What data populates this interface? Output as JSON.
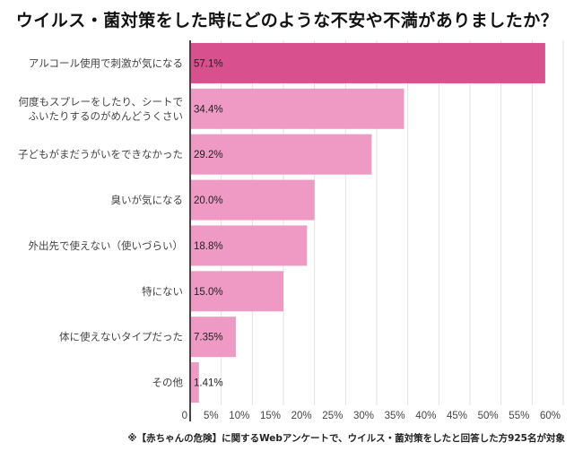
{
  "chart_data": {
    "type": "bar",
    "orientation": "horizontal",
    "title": "ウイルス・菌対策をした時にどのような不安や不満がありましたか？",
    "categories": [
      "アルコール使用で刺激が気になる",
      "何度もスプレーをしたり、シートで\nふいたりするのがめんどうくさい",
      "子どもがまだうがいをできなかった",
      "臭いが気になる",
      "外出先で使えない（使いづらい）",
      "特にない",
      "体に使えないタイプだった",
      "その他"
    ],
    "values": [
      57.1,
      34.4,
      29.2,
      20.0,
      18.8,
      15.0,
      7.35,
      1.41
    ],
    "value_labels": [
      "57.1%",
      "34.4%",
      "29.2%",
      "20.0%",
      "18.8%",
      "15.0%",
      "7.35%",
      "1.41%"
    ],
    "xlim": [
      0,
      60
    ],
    "xticks": [
      0,
      5,
      10,
      15,
      20,
      25,
      30,
      35,
      40,
      45,
      50,
      55,
      60
    ],
    "xtick_labels": [
      "0",
      "5%",
      "10%",
      "15%",
      "20%",
      "25%",
      "30%",
      "35%",
      "40%",
      "45%",
      "50%",
      "55%",
      "60%"
    ],
    "grid": true,
    "highlight_color": "#d9508f",
    "bar_color": "#ef9ac4",
    "footnote": "※【赤ちゃんの危険】に関するWebアンケートで、ウイルス・菌対策をしたと回答した方925名が対象"
  }
}
